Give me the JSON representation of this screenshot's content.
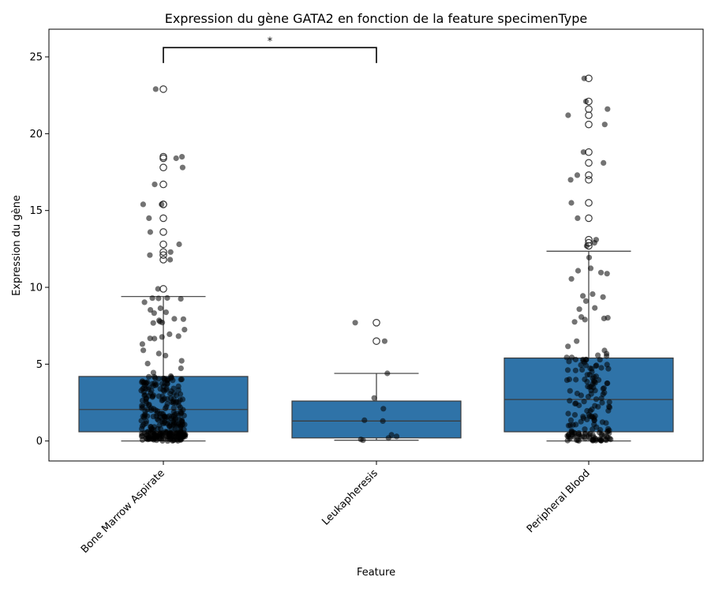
{
  "chart_data": {
    "type": "box",
    "title": "Expression du gène GATA2 en fonction de la feature specimenType",
    "xlabel": "Feature",
    "ylabel": "Expression du gène",
    "ylim": [
      -1.3,
      26.8
    ],
    "yticks": [
      0,
      5,
      10,
      15,
      20,
      25
    ],
    "categories": [
      "Bone Marrow Aspirate",
      "Leukapheresis",
      "Peripheral Blood"
    ],
    "box_color": "#2f73a8",
    "box_stats": [
      {
        "category": "Bone Marrow Aspirate",
        "whisker_low": 0.0,
        "q1": 0.6,
        "median": 2.05,
        "q3": 4.2,
        "whisker_high": 9.4,
        "outliers": [
          9.9,
          11.8,
          12.1,
          12.3,
          12.8,
          13.6,
          14.5,
          15.4,
          15.4,
          16.7,
          17.8,
          18.4,
          18.5,
          22.9
        ]
      },
      {
        "category": "Leukapheresis",
        "whisker_low": 0.05,
        "q1": 0.2,
        "median": 1.3,
        "q3": 2.6,
        "whisker_high": 4.4,
        "outliers": [
          6.5,
          7.7
        ]
      },
      {
        "category": "Peripheral Blood",
        "whisker_low": 0.0,
        "q1": 0.6,
        "median": 2.7,
        "q3": 5.4,
        "whisker_high": 12.35,
        "outliers": [
          12.7,
          12.9,
          13.1,
          14.5,
          15.5,
          17.0,
          17.3,
          18.1,
          18.8,
          20.6,
          21.2,
          21.6,
          22.1,
          23.6
        ]
      }
    ],
    "jitter_points": [
      {
        "category": "Leukapheresis",
        "values": [
          0.05,
          0.1,
          0.2,
          0.3,
          0.4,
          1.3,
          1.35,
          2.1,
          2.8,
          4.4,
          6.5,
          7.7
        ]
      }
    ],
    "significance": {
      "from": "Bone Marrow Aspirate",
      "to": "Leukapheresis",
      "y": 25.6,
      "label": "*"
    }
  }
}
